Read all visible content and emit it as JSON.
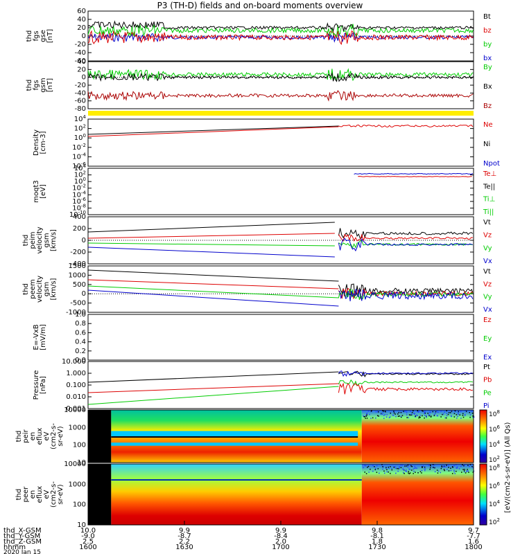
{
  "title": "P3 (TH-D) fields and on-board moments overview",
  "chart_data": {
    "type": "line",
    "title": "P3 (TH-D) fields and on-board moments overview",
    "panels": [
      {
        "id": "fgs_gse",
        "ylabel": [
          "thd",
          "fgs",
          "gse",
          "[nT]"
        ],
        "ticks": [
          "60",
          "40",
          "20",
          "0",
          "-20",
          "-40",
          "-60"
        ],
        "ylim": [
          -60,
          60
        ],
        "hasZero": true,
        "legend": [
          {
            "t": "Bt",
            "c": "#000000"
          },
          {
            "t": "bz",
            "c": "#dd0000"
          },
          {
            "t": "by",
            "c": "#00cc00"
          },
          {
            "t": "bx",
            "c": "#0000cc"
          }
        ]
      },
      {
        "id": "fgs_gsm",
        "ylabel": [
          "thd",
          "fgs",
          "gsm",
          "[nT]"
        ],
        "ticks": [
          "40",
          "20",
          "0",
          "-20",
          "-40",
          "-60",
          "-80"
        ],
        "ylim": [
          -80,
          40
        ],
        "hasZero": true,
        "legend": [
          {
            "t": "By",
            "c": "#00cc00"
          },
          {
            "t": "Bx",
            "c": "#000000"
          },
          {
            "t": "Bz",
            "c": "#aa0000"
          }
        ]
      },
      {
        "id": "density",
        "ylabel": [
          "Density",
          "[cm-3]"
        ],
        "ticks": [
          "10^4",
          "10^2",
          "10^0",
          "10^-2",
          "10^-4",
          "10^-6"
        ],
        "ylim": [
          -6,
          4
        ],
        "log": true,
        "legend": [
          {
            "t": "Ne",
            "c": "#dd0000"
          },
          {
            "t": "Ni",
            "c": "#000000"
          },
          {
            "t": "Npot",
            "c": "#0000cc"
          }
        ]
      },
      {
        "id": "temp",
        "ylabel": [
          "moqt3",
          "[eV]"
        ],
        "ticks": [
          "10^4",
          "10^2",
          "10^0",
          "10^-2",
          "10^-4",
          "10^-6",
          "10^-8",
          "10^-10"
        ],
        "ylim": [
          -10,
          4
        ],
        "log": true,
        "legend": [
          {
            "t": "Te⊥",
            "c": "#dd0000"
          },
          {
            "t": "Te||",
            "c": "#000000"
          },
          {
            "t": "Ti⊥",
            "c": "#00cc00"
          },
          {
            "t": "Ti||",
            "c": "#00cc00"
          }
        ]
      },
      {
        "id": "peim",
        "ylabel": [
          "thd",
          "peim",
          "velocity",
          "gsm",
          "[km/s]"
        ],
        "ticks": [
          "400",
          "200",
          "0",
          "-200",
          "-400"
        ],
        "ylim": [
          -400,
          400
        ],
        "hasZero": true,
        "legend": [
          {
            "t": "Vt",
            "c": "#000000"
          },
          {
            "t": "Vz",
            "c": "#dd0000"
          },
          {
            "t": "Vy",
            "c": "#00cc00"
          },
          {
            "t": "Vx",
            "c": "#0000cc"
          }
        ]
      },
      {
        "id": "peem",
        "ylabel": [
          "thd",
          "peem",
          "velocity",
          "gsm",
          "[km/s]"
        ],
        "ticks": [
          "1500",
          "1000",
          "500",
          "0",
          "-500",
          "-1000"
        ],
        "ylim": [
          -1000,
          1500
        ],
        "hasZero": true,
        "legend": [
          {
            "t": "Vt",
            "c": "#000000"
          },
          {
            "t": "Vz",
            "c": "#dd0000"
          },
          {
            "t": "Vy",
            "c": "#00cc00"
          },
          {
            "t": "Vx",
            "c": "#0000cc"
          }
        ]
      },
      {
        "id": "efield",
        "ylabel": [
          "E=-VxB",
          "[mV/m]"
        ],
        "ticks": [
          "1.0",
          "0.8",
          "0.6",
          "0.4",
          "0.2",
          "0.0"
        ],
        "ylim": [
          0,
          1
        ],
        "legend": [
          {
            "t": "Ez",
            "c": "#dd0000"
          },
          {
            "t": "Ey",
            "c": "#00cc00"
          },
          {
            "t": "Ex",
            "c": "#0000cc"
          }
        ]
      },
      {
        "id": "pressure",
        "ylabel": [
          "Pressure",
          "[nPa]"
        ],
        "ticks": [
          "10.000",
          "1.000",
          "0.100",
          "0.010",
          "0.001"
        ],
        "ylim": [
          0.001,
          10
        ],
        "log": true,
        "legend": [
          {
            "t": "Pt",
            "c": "#000000"
          },
          {
            "t": "Pb",
            "c": "#dd0000"
          },
          {
            "t": "Pe",
            "c": "#00cc00"
          },
          {
            "t": "Pi",
            "c": "#0000cc"
          }
        ]
      },
      {
        "id": "peir",
        "ylabel": [
          "thd",
          "peir",
          "en",
          "eflux",
          "eV",
          "(cm2-s-",
          "sr-eV)"
        ],
        "ticks": [
          "10000",
          "1000",
          "100",
          "10"
        ],
        "type": "spectrogram"
      },
      {
        "id": "peer",
        "ylabel": [
          "thd",
          "peer",
          "en",
          "eflux",
          "eV",
          "(cm2-s-",
          "sr-eV)"
        ],
        "ticks": [
          "10000",
          "1000",
          "100",
          "10"
        ],
        "type": "spectrogram"
      }
    ],
    "colorbar": {
      "ticks": [
        "10^8",
        "10^6",
        "10^4",
        "10^2"
      ],
      "label": "[eV/(cm2-s-sr-eV)] (All Qs)"
    },
    "x_axis": {
      "labels": [
        "1600",
        "1630",
        "1700",
        "1730",
        "1800"
      ],
      "rows": [
        {
          "name": "thd_X-GSM",
          "values": [
            "10.0",
            "9.9",
            "9.9",
            "9.8",
            "9.7"
          ]
        },
        {
          "name": "thd_Y-GSM",
          "values": [
            "-9.0",
            "-8.7",
            "-8.4",
            "-8.1",
            "-7.7"
          ]
        },
        {
          "name": "thd_Z-GSM",
          "values": [
            "2.5",
            "2.2",
            "2.0",
            "1.8",
            "1.6"
          ]
        },
        {
          "name": "hhmm",
          "values": [
            "1600",
            "1630",
            "1700",
            "1730",
            "1800"
          ]
        }
      ],
      "date": "2020 Jan 15"
    }
  }
}
